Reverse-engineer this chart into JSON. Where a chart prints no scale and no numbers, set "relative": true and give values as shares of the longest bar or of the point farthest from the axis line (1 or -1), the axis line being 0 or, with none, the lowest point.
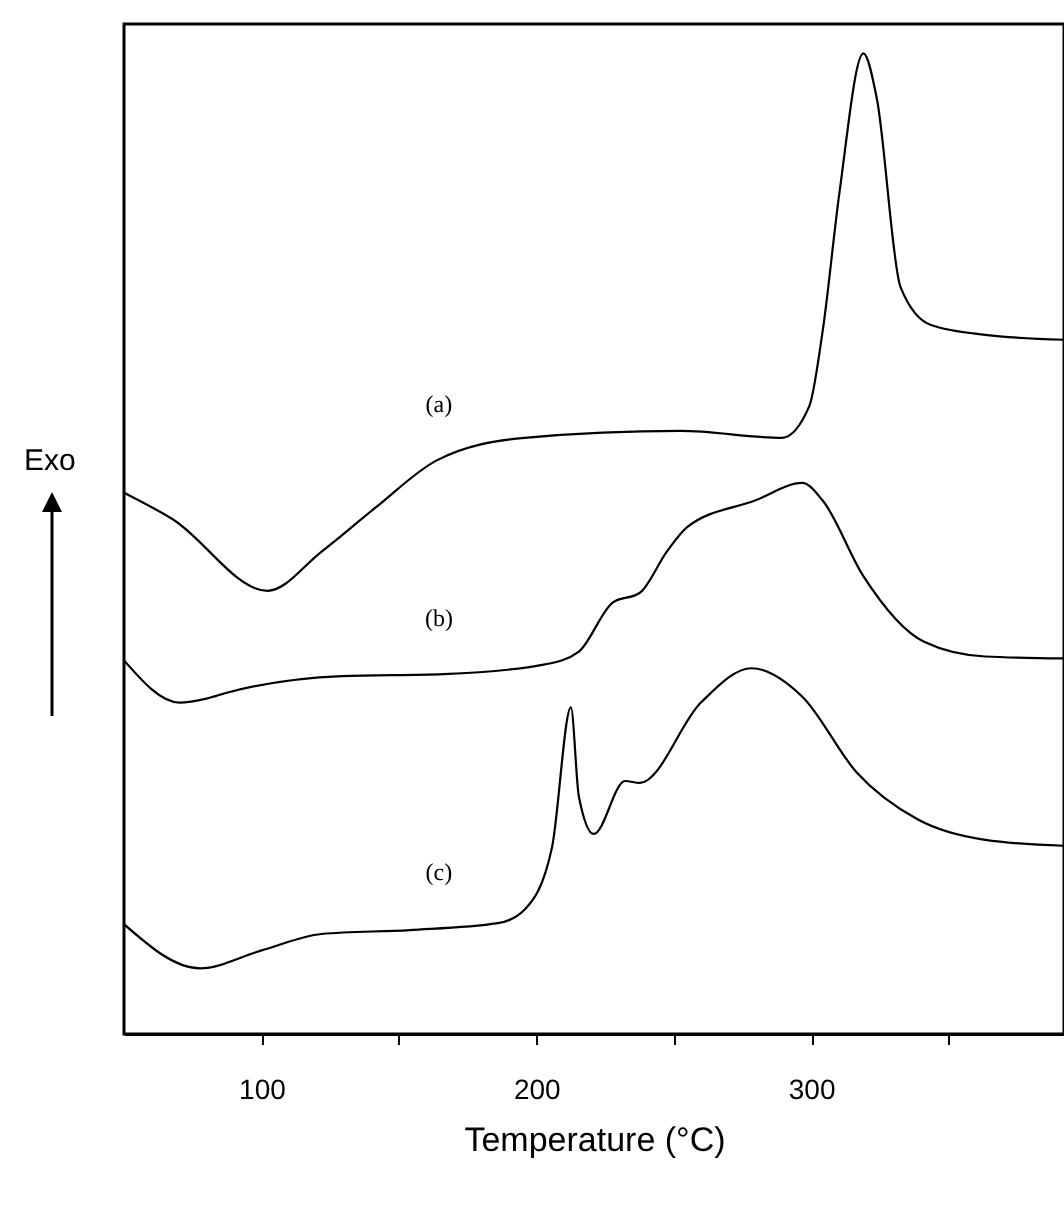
{
  "chart_data": {
    "type": "line",
    "xlabel": "Temperature (°C)",
    "ylabel": "Exo",
    "relative": true,
    "legend": false,
    "marker": "none",
    "grid": false,
    "xlim": [
      50,
      392
    ],
    "xticks": [
      100,
      {
        "value": 150,
        "label": null
      },
      200,
      {
        "value": 250,
        "label": null
      },
      300,
      {
        "value": 350,
        "label": null
      }
    ],
    "series": [
      {
        "name": "(a)",
        "color": "#000000",
        "x": [
          50,
          67.7,
          102.2,
          121.9,
          141.6,
          163.8,
          195.8,
          252.5,
          289.4,
          299.3,
          304.2,
          310.3,
          319.0,
          323.9,
          332.5,
          343.6,
          363.3,
          391.9
        ],
        "values": [
          0.552,
          0.525,
          0.452,
          0.492,
          0.537,
          0.585,
          0.608,
          0.615,
          0.608,
          0.64,
          0.717,
          0.858,
          1.0,
          0.954,
          0.762,
          0.723,
          0.713,
          0.708
        ]
      },
      {
        "name": "(b)",
        "color": "#000000",
        "x": [
          50,
          70.2,
          80.0,
          87.4,
          129.3,
          166.3,
          203.2,
          215.5,
          227.8,
          237.7,
          247.5,
          254.9,
          279.6,
          296.8,
          304.2,
          319.0,
          341.1,
          363.3,
          391.9
        ],
        "values": [
          0.381,
          0.338,
          0.342,
          0.348,
          0.365,
          0.367,
          0.377,
          0.39,
          0.44,
          0.45,
          0.492,
          0.517,
          0.544,
          0.562,
          0.544,
          0.467,
          0.4,
          0.385,
          0.383
        ]
      },
      {
        "name": "(c)",
        "color": "#000000",
        "x": [
          50,
          77.6,
          99.8,
          121.9,
          153.9,
          186.0,
          195.8,
          205.7,
          212.6,
          215.5,
          220.9,
          232.3,
          237.7,
          259.9,
          278.3,
          296.8,
          316.5,
          338.7,
          363.3,
          391.9
        ],
        "values": [
          0.112,
          0.067,
          0.085,
          0.102,
          0.106,
          0.113,
          0.127,
          0.19,
          0.333,
          0.242,
          0.204,
          0.258,
          0.256,
          0.338,
          0.373,
          0.344,
          0.267,
          0.219,
          0.198,
          0.192
        ]
      }
    ]
  }
}
